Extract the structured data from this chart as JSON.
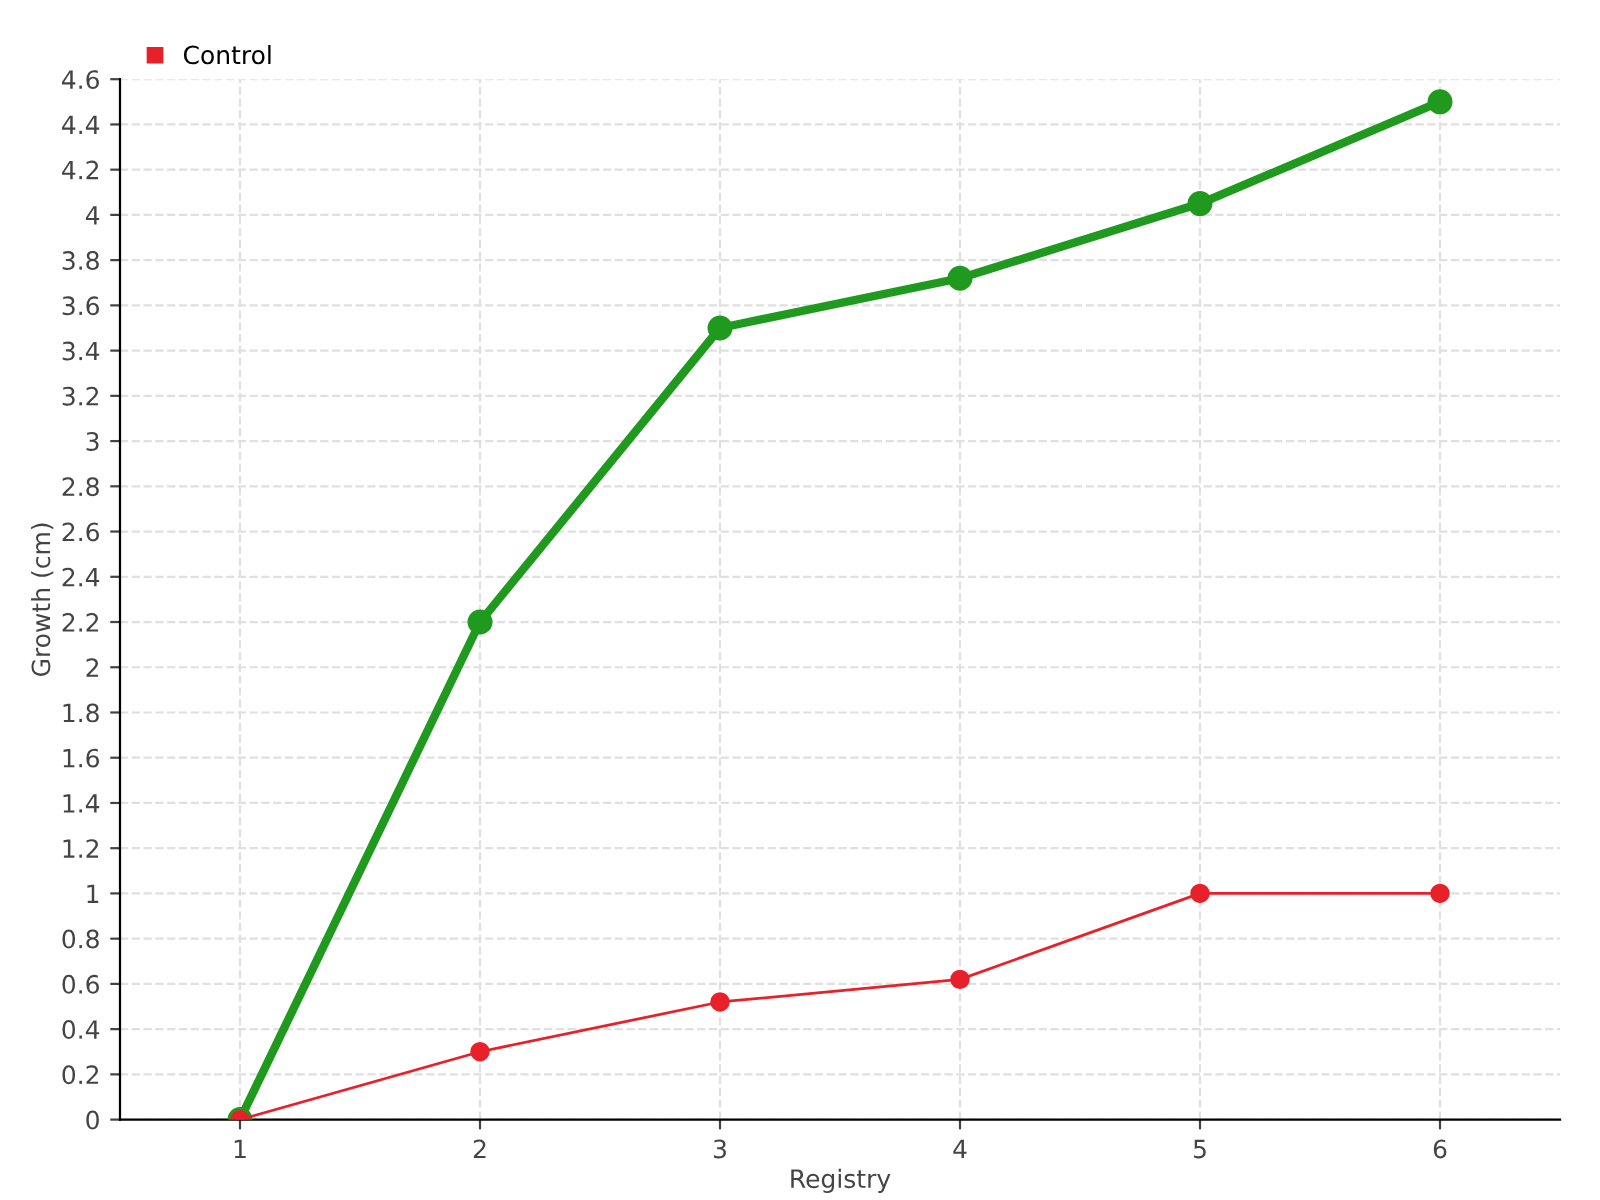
{
  "chart_data": {
    "type": "line",
    "xlabel": "Registry",
    "ylabel": "Growth (cm)",
    "categories": [
      "1",
      "2",
      "3",
      "4",
      "5",
      "6"
    ],
    "series": [
      {
        "color": "#1f9a1f",
        "values": [
          0,
          2.2,
          3.5,
          3.72,
          4.05,
          4.5
        ]
      },
      {
        "name": "Control",
        "color": "#e8202a",
        "values": [
          0,
          0.3,
          0.52,
          0.62,
          1.0,
          1.0
        ]
      }
    ],
    "ylim": [
      0,
      4.6
    ],
    "yticks": [
      0,
      0.2,
      0.4,
      0.6,
      0.8,
      1,
      1.2,
      1.4,
      1.6,
      1.8,
      2,
      2.2,
      2.4,
      2.6,
      2.8,
      3,
      3.2,
      3.4,
      3.6,
      3.8,
      4,
      4.2,
      4.4,
      4.6
    ],
    "grid": true,
    "legend": "top left",
    "marker": "circle",
    "line_style": "solid"
  }
}
